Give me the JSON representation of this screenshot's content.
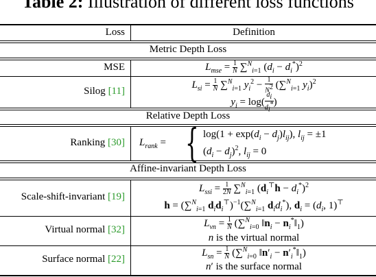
{
  "title": {
    "label": "Table 2:",
    "text": "Illustration of different loss functions"
  },
  "headers": {
    "loss": "Loss",
    "definition": "Definition"
  },
  "sections": [
    {
      "name": "Metric Depth Loss"
    },
    {
      "name": "Relative Depth Loss"
    },
    {
      "name": "Affine-invariant Depth Loss"
    }
  ],
  "rows": [
    {
      "loss": "MSE",
      "cite": ""
    },
    {
      "loss": "Silog ",
      "cite": "[11]"
    },
    {
      "loss": "Ranking ",
      "cite": "[30]"
    },
    {
      "loss": "Scale-shift-invariant  ",
      "cite": "[19]"
    },
    {
      "loss": "Virtual normal ",
      "cite": "[32]"
    },
    {
      "loss": "Surface normal  ",
      "cite": "[22]"
    }
  ],
  "notes": {
    "virtual": "is the virtual normal",
    "surface": "is the surface normal"
  }
}
